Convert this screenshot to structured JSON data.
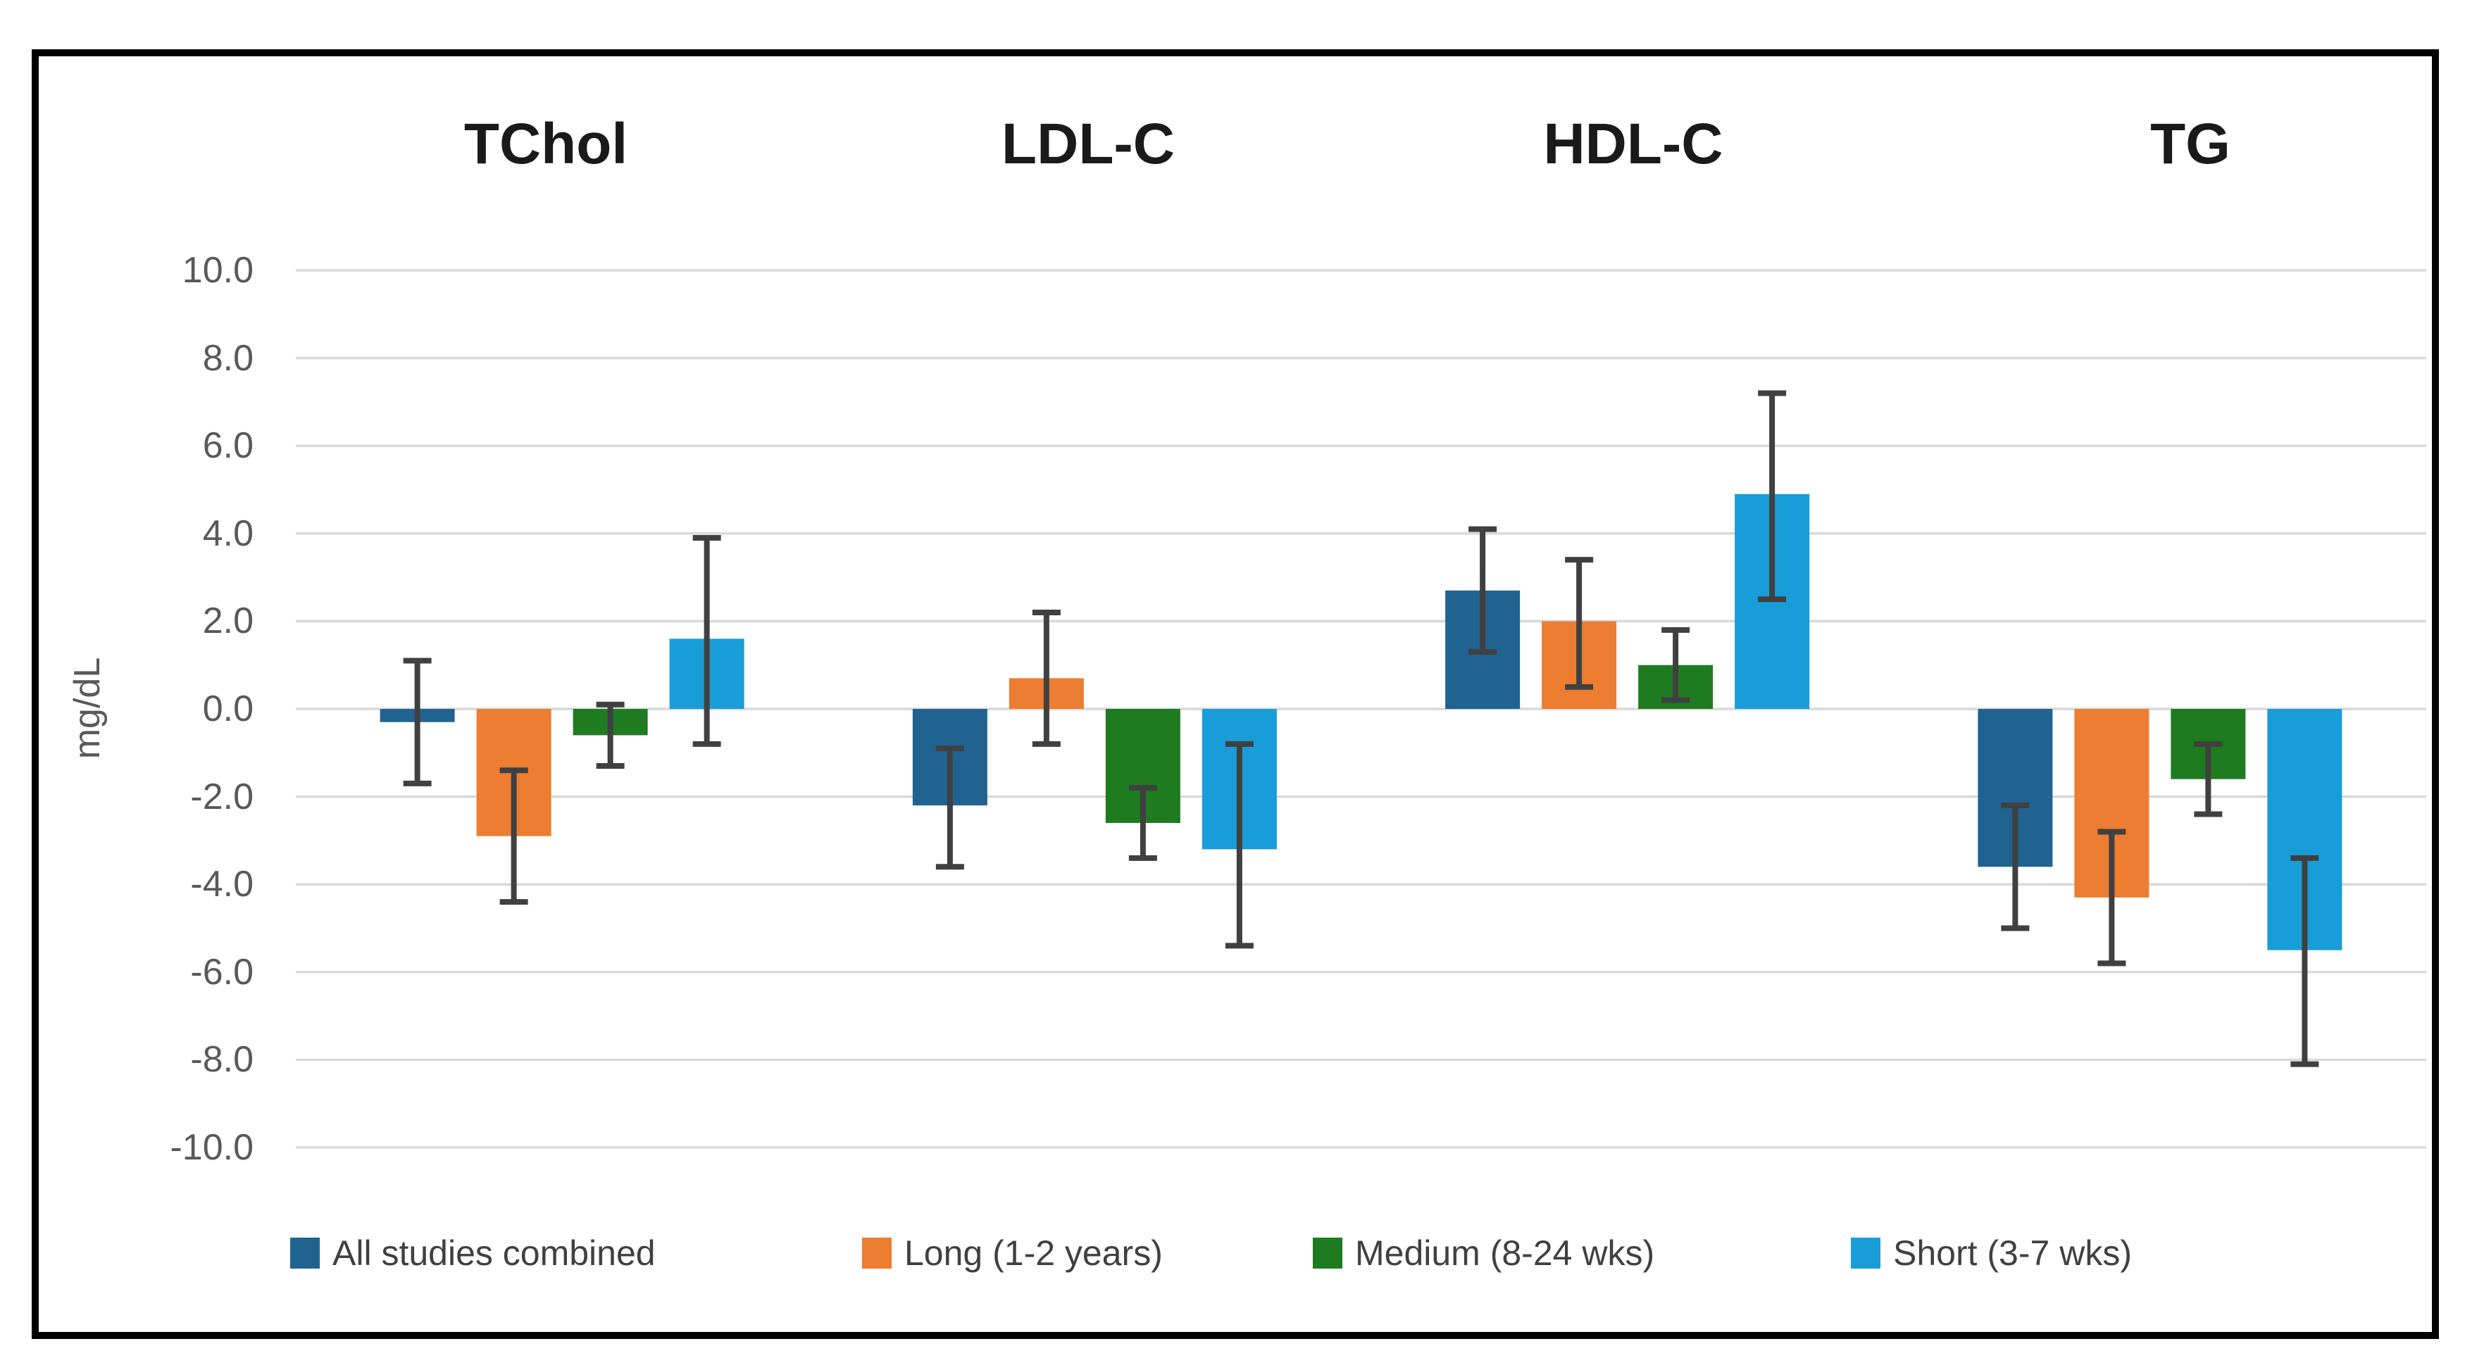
{
  "chart_data": {
    "type": "bar",
    "title": "",
    "ylabel": "mg/dL",
    "xlabel": "",
    "categories": [
      "TChol",
      "LDL-C",
      "HDL-C",
      "TG"
    ],
    "ylim": [
      -10,
      10
    ],
    "ytick_step": 2,
    "ytick_labels": [
      "10.0",
      "8.0",
      "6.0",
      "4.0",
      "2.0",
      "0.0",
      "-2.0",
      "-4.0",
      "-6.0",
      "-8.0",
      "-10.0"
    ],
    "grid": true,
    "gridline_color": "#D9D9D9",
    "error_bar_color": "#404040",
    "legend_position": "bottom",
    "series": [
      {
        "name": "All studies combined",
        "color": "#206391",
        "values": [
          -0.3,
          -2.2,
          2.7,
          -3.6
        ],
        "err_high": [
          1.1,
          -0.9,
          4.1,
          -2.2
        ],
        "err_low": [
          -1.7,
          -3.6,
          1.3,
          -5.0
        ]
      },
      {
        "name": "Long (1-2 years)",
        "color": "#ED7D31",
        "values": [
          -2.9,
          0.7,
          2.0,
          -4.3
        ],
        "err_high": [
          -1.4,
          2.2,
          3.4,
          -2.8
        ],
        "err_low": [
          -4.4,
          -0.8,
          0.5,
          -5.8
        ]
      },
      {
        "name": "Medium (8-24 wks)",
        "color": "#1F7B1F",
        "values": [
          -0.6,
          -2.6,
          1.0,
          -1.6
        ],
        "err_high": [
          0.1,
          -1.8,
          1.8,
          -0.8
        ],
        "err_low": [
          -1.3,
          -3.4,
          0.2,
          -2.4
        ]
      },
      {
        "name": "Short (3-7 wks)",
        "color": "#199DD8",
        "values": [
          1.6,
          -3.2,
          4.9,
          -5.5
        ],
        "err_high": [
          3.9,
          -0.8,
          7.2,
          -3.4
        ],
        "err_low": [
          -0.8,
          -5.4,
          2.5,
          -8.1
        ]
      }
    ]
  }
}
